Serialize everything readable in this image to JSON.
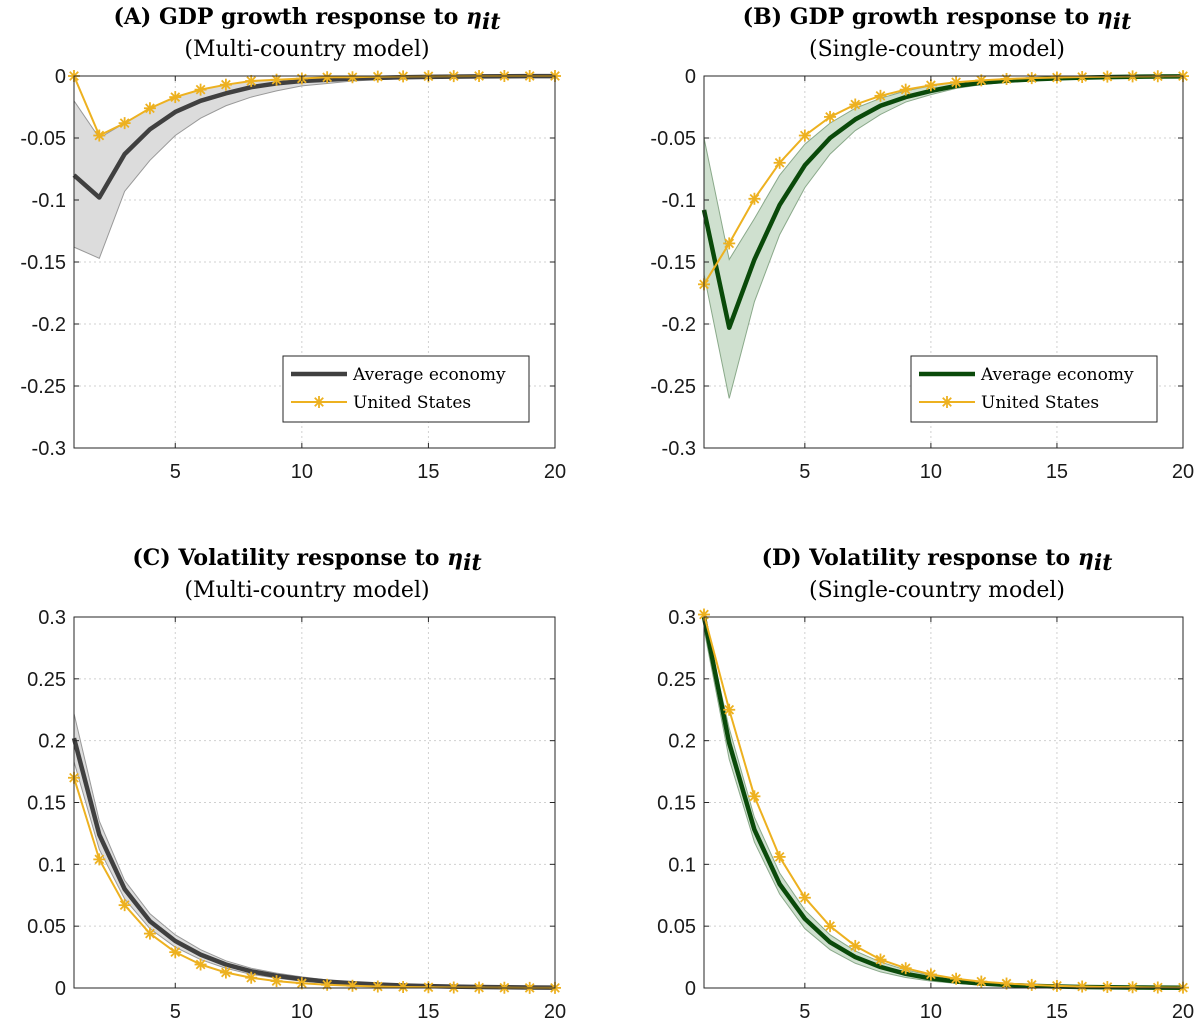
{
  "chart_data": [
    {
      "id": "A",
      "type": "line",
      "title": "(A) GDP growth response to ",
      "title_symbol": "η",
      "title_subscript": "it",
      "subtitle": "(Multi-country model)",
      "xlim": [
        1,
        20
      ],
      "ylim": [
        -0.3,
        0
      ],
      "xticks": [
        5,
        10,
        15,
        20
      ],
      "xtick_labels": [
        "5",
        "10",
        "15",
        "20"
      ],
      "yticks": [
        0,
        -0.05,
        -0.1,
        -0.15,
        -0.2,
        -0.25,
        -0.3
      ],
      "ytick_labels": [
        "0",
        "-0.05",
        "-0.1",
        "-0.15",
        "-0.2",
        "-0.25",
        "-0.3"
      ],
      "grid": true,
      "legend": "bottom-right",
      "x": [
        1,
        2,
        3,
        4,
        5,
        6,
        7,
        8,
        9,
        10,
        11,
        12,
        13,
        14,
        15,
        16,
        17,
        18,
        19,
        20
      ],
      "band": {
        "color": "#dcdcdc",
        "edge_color": "#999999",
        "upper": [
          -0.02,
          -0.05,
          -0.038,
          -0.026,
          -0.017,
          -0.011,
          -0.007,
          -0.004,
          -0.003,
          -0.002,
          -0.001,
          -0.001,
          -0.0005,
          -0.0003,
          -0.0002,
          -0.0001,
          0,
          0,
          0,
          0
        ],
        "lower": [
          -0.138,
          -0.147,
          -0.093,
          -0.068,
          -0.048,
          -0.034,
          -0.024,
          -0.017,
          -0.012,
          -0.008,
          -0.006,
          -0.004,
          -0.003,
          -0.002,
          -0.0015,
          -0.001,
          -0.0008,
          -0.0006,
          -0.0004,
          -0.0003
        ]
      },
      "series": [
        {
          "name": "Average economy",
          "color": "#404040",
          "width": 4.5,
          "marker": "none",
          "values": [
            -0.08,
            -0.098,
            -0.063,
            -0.043,
            -0.029,
            -0.02,
            -0.014,
            -0.009,
            -0.006,
            -0.004,
            -0.003,
            -0.002,
            -0.0015,
            -0.001,
            -0.0007,
            -0.0005,
            -0.0003,
            -0.0002,
            -0.0001,
            -0.0001
          ]
        },
        {
          "name": "United States",
          "color": "#EDB120",
          "width": 2,
          "marker": "asterisk",
          "values": [
            0,
            -0.048,
            -0.038,
            -0.026,
            -0.017,
            -0.011,
            -0.007,
            -0.004,
            -0.003,
            -0.002,
            -0.001,
            -0.001,
            -0.0005,
            -0.0003,
            -0.0002,
            -0.0001,
            0,
            0,
            0,
            0
          ]
        }
      ]
    },
    {
      "id": "B",
      "type": "line",
      "title": "(B) GDP growth response to ",
      "title_symbol": "η",
      "title_subscript": "it",
      "subtitle": "(Single-country model)",
      "xlim": [
        1,
        20
      ],
      "ylim": [
        -0.3,
        0
      ],
      "xticks": [
        5,
        10,
        15,
        20
      ],
      "xtick_labels": [
        "5",
        "10",
        "15",
        "20"
      ],
      "yticks": [
        0,
        -0.05,
        -0.1,
        -0.15,
        -0.2,
        -0.25,
        -0.3
      ],
      "ytick_labels": [
        "0",
        "-0.05",
        "-0.1",
        "-0.15",
        "-0.2",
        "-0.25",
        "-0.3"
      ],
      "grid": true,
      "legend": "bottom-right",
      "x": [
        1,
        2,
        3,
        4,
        5,
        6,
        7,
        8,
        9,
        10,
        11,
        12,
        13,
        14,
        15,
        16,
        17,
        18,
        19,
        20
      ],
      "band": {
        "color": "#cfe0cf",
        "edge_color": "#8aa98a",
        "upper": [
          -0.05,
          -0.148,
          -0.115,
          -0.08,
          -0.055,
          -0.038,
          -0.026,
          -0.018,
          -0.012,
          -0.008,
          -0.005,
          -0.0035,
          -0.0025,
          -0.0017,
          -0.0012,
          -0.0008,
          -0.0005,
          -0.0003,
          -0.0002,
          -0.0001
        ],
        "lower": [
          -0.16,
          -0.26,
          -0.182,
          -0.128,
          -0.09,
          -0.063,
          -0.044,
          -0.031,
          -0.021,
          -0.015,
          -0.01,
          -0.007,
          -0.005,
          -0.0035,
          -0.0025,
          -0.0018,
          -0.0013,
          -0.0009,
          -0.0006,
          -0.0004
        ]
      },
      "series": [
        {
          "name": "Average economy",
          "color": "#0a4a0a",
          "width": 4.5,
          "marker": "none",
          "values": [
            -0.108,
            -0.203,
            -0.148,
            -0.104,
            -0.072,
            -0.05,
            -0.035,
            -0.024,
            -0.017,
            -0.012,
            -0.008,
            -0.0055,
            -0.0038,
            -0.0027,
            -0.0019,
            -0.0013,
            -0.0009,
            -0.0006,
            -0.0004,
            -0.0003
          ]
        },
        {
          "name": "United States",
          "color": "#EDB120",
          "width": 2,
          "marker": "asterisk",
          "values": [
            -0.168,
            -0.135,
            -0.099,
            -0.07,
            -0.048,
            -0.033,
            -0.023,
            -0.016,
            -0.011,
            -0.0075,
            -0.005,
            -0.0035,
            -0.0024,
            -0.0017,
            -0.0012,
            -0.0008,
            -0.0005,
            -0.0003,
            -0.0002,
            -0.0001
          ]
        }
      ]
    },
    {
      "id": "C",
      "type": "line",
      "title": "(C) Volatility response to ",
      "title_symbol": "η",
      "title_subscript": "it",
      "subtitle": "(Multi-country model)",
      "xlim": [
        1,
        20
      ],
      "ylim": [
        0,
        0.3
      ],
      "xticks": [
        5,
        10,
        15,
        20
      ],
      "xtick_labels": [
        "5",
        "10",
        "15",
        "20"
      ],
      "yticks": [
        0.3,
        0.25,
        0.2,
        0.15,
        0.1,
        0.05,
        0
      ],
      "ytick_labels": [
        "0.3",
        "0.25",
        "0.2",
        "0.15",
        "0.1",
        "0.05",
        "0"
      ],
      "grid": true,
      "legend": "none",
      "x": [
        1,
        2,
        3,
        4,
        5,
        6,
        7,
        8,
        9,
        10,
        11,
        12,
        13,
        14,
        15,
        16,
        17,
        18,
        19,
        20
      ],
      "band": {
        "color": "#dcdcdc",
        "edge_color": "#999999",
        "upper": [
          0.222,
          0.135,
          0.087,
          0.06,
          0.043,
          0.031,
          0.022,
          0.016,
          0.012,
          0.009,
          0.0065,
          0.0047,
          0.0034,
          0.0025,
          0.0018,
          0.0013,
          0.0009,
          0.0007,
          0.0005,
          0.0004
        ],
        "lower": [
          0.183,
          0.112,
          0.072,
          0.048,
          0.033,
          0.023,
          0.016,
          0.011,
          0.008,
          0.0055,
          0.0038,
          0.0026,
          0.0018,
          0.0012,
          0.0008,
          0.0006,
          0.0004,
          0.0003,
          0.0002,
          0.0001
        ]
      },
      "series": [
        {
          "name": "Average economy",
          "color": "#404040",
          "width": 4.5,
          "marker": "none",
          "values": [
            0.202,
            0.124,
            0.08,
            0.054,
            0.038,
            0.027,
            0.019,
            0.0135,
            0.0098,
            0.0072,
            0.0052,
            0.0038,
            0.0028,
            0.002,
            0.0015,
            0.0011,
            0.0008,
            0.0006,
            0.0004,
            0.0003
          ]
        },
        {
          "name": "United States",
          "color": "#EDB120",
          "width": 2,
          "marker": "asterisk",
          "values": [
            0.17,
            0.104,
            0.067,
            0.044,
            0.029,
            0.019,
            0.0125,
            0.0083,
            0.0056,
            0.0038,
            0.0026,
            0.0018,
            0.0012,
            0.0008,
            0.0006,
            0.0004,
            0.0003,
            0.0002,
            0.0001,
            0.0001
          ]
        }
      ]
    },
    {
      "id": "D",
      "type": "line",
      "title": "(D) Volatility response to ",
      "title_symbol": "η",
      "title_subscript": "it",
      "subtitle": "(Single-country model)",
      "xlim": [
        1,
        20
      ],
      "ylim": [
        0,
        0.3
      ],
      "xticks": [
        5,
        10,
        15,
        20
      ],
      "xtick_labels": [
        "5",
        "10",
        "15",
        "20"
      ],
      "yticks": [
        0.3,
        0.25,
        0.2,
        0.15,
        0.1,
        0.05,
        0
      ],
      "ytick_labels": [
        "0.3",
        "0.25",
        "0.2",
        "0.15",
        "0.1",
        "0.05",
        "0"
      ],
      "grid": true,
      "legend": "none",
      "x": [
        1,
        2,
        3,
        4,
        5,
        6,
        7,
        8,
        9,
        10,
        11,
        12,
        13,
        14,
        15,
        16,
        17,
        18,
        19,
        20
      ],
      "band": {
        "color": "#cfe0cf",
        "edge_color": "#8aa98a",
        "upper": [
          0.3,
          0.21,
          0.138,
          0.093,
          0.063,
          0.043,
          0.03,
          0.021,
          0.0146,
          0.0102,
          0.0072,
          0.0051,
          0.0036,
          0.0026,
          0.0019,
          0.0014,
          0.001,
          0.0007,
          0.0005,
          0.0004
        ],
        "lower": [
          0.29,
          0.185,
          0.118,
          0.076,
          0.048,
          0.031,
          0.02,
          0.013,
          0.0085,
          0.0056,
          0.0037,
          0.0025,
          0.0017,
          0.0011,
          0.0008,
          0.0005,
          0.0004,
          0.0003,
          0.0002,
          0.0001
        ]
      },
      "series": [
        {
          "name": "Average economy",
          "color": "#0a4a0a",
          "width": 4.5,
          "marker": "none",
          "values": [
            0.3,
            0.198,
            0.128,
            0.084,
            0.056,
            0.037,
            0.025,
            0.017,
            0.0115,
            0.0078,
            0.0053,
            0.0036,
            0.0025,
            0.0017,
            0.0012,
            0.0008,
            0.0006,
            0.0004,
            0.0003,
            0.0002
          ]
        },
        {
          "name": "United States",
          "color": "#EDB120",
          "width": 2,
          "marker": "asterisk",
          "values": [
            0.302,
            0.225,
            0.155,
            0.106,
            0.073,
            0.05,
            0.034,
            0.023,
            0.016,
            0.011,
            0.0075,
            0.0052,
            0.0036,
            0.0025,
            0.0017,
            0.0012,
            0.0008,
            0.0006,
            0.0004,
            0.0003
          ]
        }
      ]
    }
  ]
}
